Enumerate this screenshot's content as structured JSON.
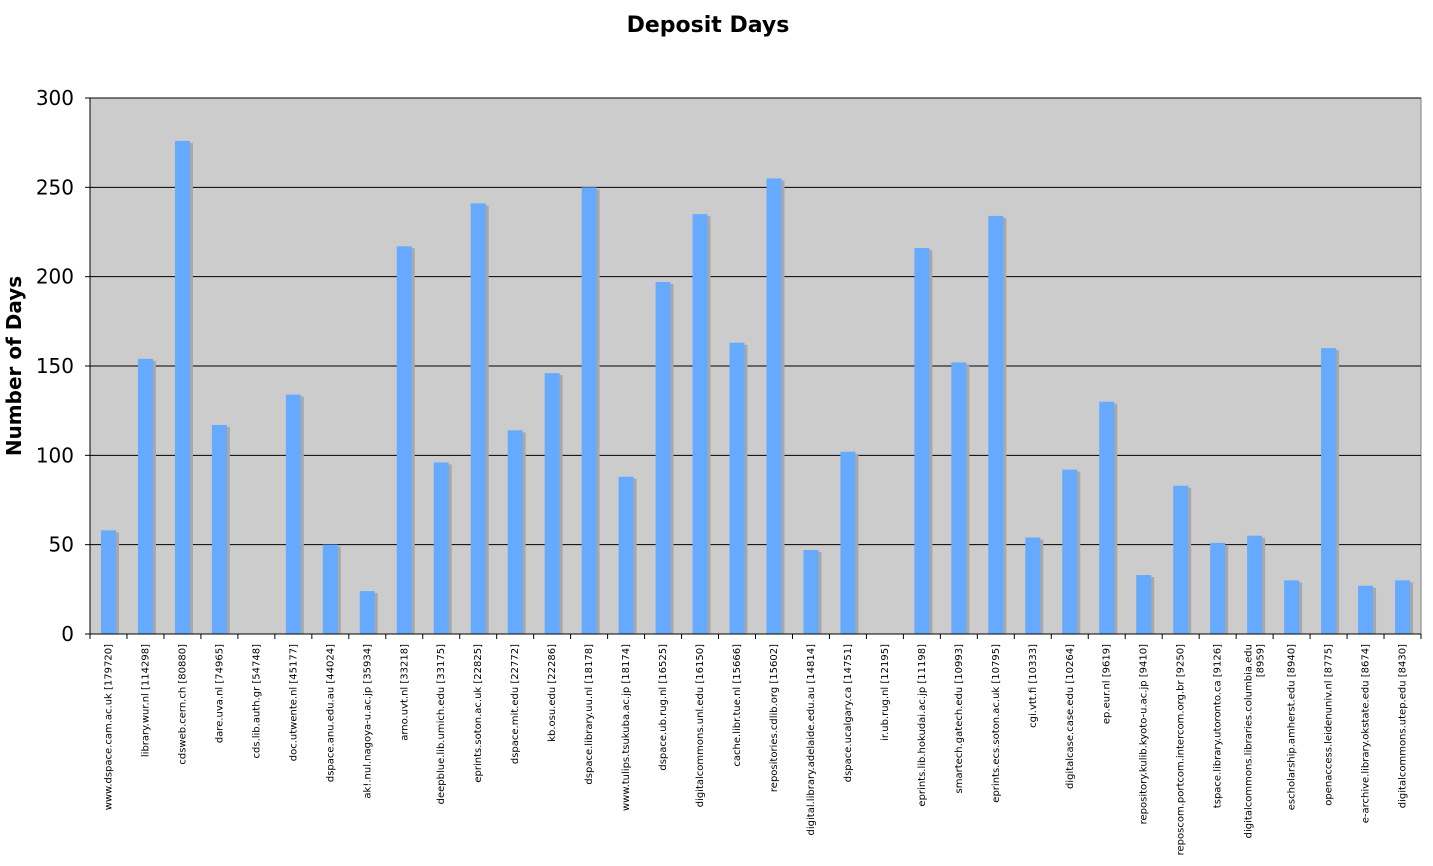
{
  "chart_data": {
    "type": "bar",
    "title": "Deposit Days",
    "xlabel": "",
    "ylabel": "Number of Days",
    "ylim": [
      0,
      300
    ],
    "yticks": [
      0,
      50,
      100,
      150,
      200,
      250,
      300
    ],
    "grid": true,
    "legend": "none",
    "colors": {
      "bar": "#66aaff",
      "bar_shadow": "#a8a8a8",
      "plot_background": "#cccccc",
      "gridline": "#000000"
    },
    "categories": [
      "www.dspace.cam.ac.uk [179720]",
      "library.wur.nl [114298]",
      "cdsweb.cern.ch [80880]",
      "dare.uva.nl [74965]",
      "cds.lib.auth.gr [54748]",
      "doc.utwente.nl [45177]",
      "dspace.anu.edu.au [44024]",
      "ak!.nul.nagoya-u.ac.jp [35934]",
      "arno.uvt.nl [33218]",
      "deepblue.lib.umich.edu [33175]",
      "eprints.soton.ac.uk [22825]",
      "dspace.mit.edu [22772]",
      "kb.osu.edu [22286]",
      "dspace.library.uu.nl [18178]",
      "www.tulips.tsukuba.ac.jp [18174]",
      "dspace.ub.rug.nl [16525]",
      "digitalcommons.unl.edu [16150]",
      "cache.libr.tue.nl [15666]",
      "repositories.cdlib.org [15602]",
      "digital.library.adelaide.edu.au [14814]",
      "dspace.ucalgary.ca [14751]",
      "ir.ub.rug.nl [12195]",
      "eprints.lib.hokudai.ac.jp [11198]",
      "smartech.gatech.edu [10993]",
      "eprints.ecs.soton.ac.uk [10795]",
      "cgi.vtt.fi [10333]",
      "digitalcase.case.edu [10264]",
      "ep.eur.nl [9619]",
      "repository.kulib.kyoto-u.ac.jp [9410]",
      "reposcom.portcom.intercom.org.br [9250]",
      "tspace.library.utoronto.ca [9126]",
      "digitalcommons.libraries.columbia.edu [8959]",
      "escholarship.amherst.edu [8940]",
      "openaccess.leidenuniv.nl [8775]",
      "e-archive.library.okstate.edu [8674]",
      "digitalcommons.utep.edu [8430]"
    ],
    "values": [
      58,
      154,
      276,
      117,
      0,
      134,
      50,
      24,
      217,
      96,
      241,
      114,
      146,
      250,
      88,
      197,
      235,
      163,
      255,
      47,
      102,
      0,
      216,
      152,
      234,
      54,
      92,
      130,
      33,
      83,
      51,
      55,
      30,
      160,
      27,
      30
    ]
  }
}
